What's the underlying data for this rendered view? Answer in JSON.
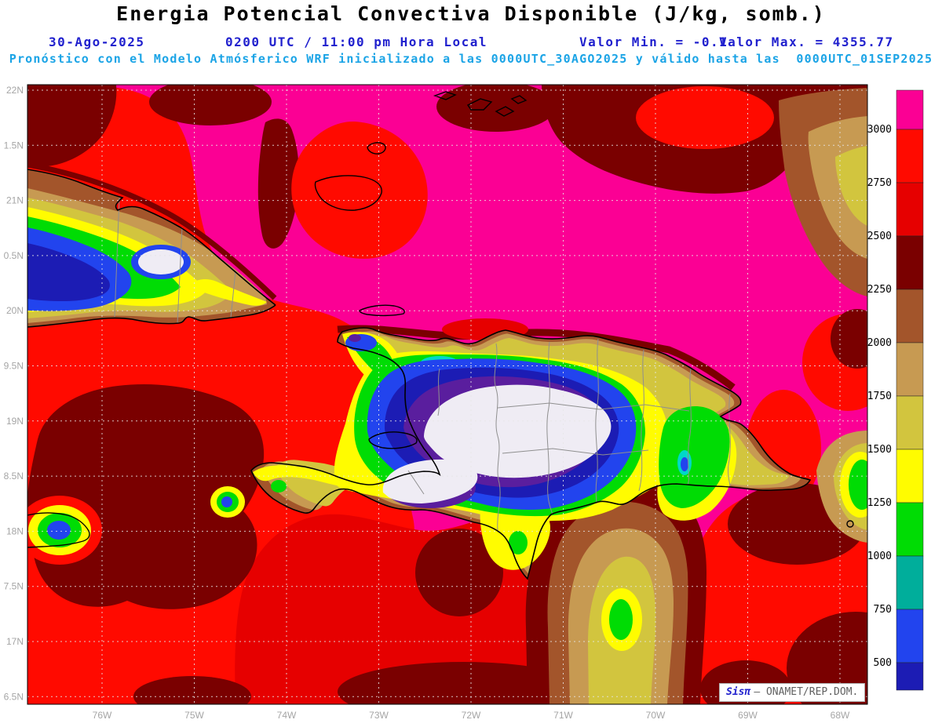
{
  "header": {
    "title": "Energia Potencial Convectiva Disponible (J/kg, somb.)",
    "date": "30-Ago-2025",
    "time": "0200 UTC / 11:00 pm Hora Local",
    "min_label": "Valor Min. = -0.1",
    "max_label": "Valor Max. = 4355.77",
    "forecast_line": "Pronóstico con el Modelo Atmósferico WRF inicializado a las 0000UTC_30AGO2025 y válido hasta las  0000UTC_01SEP2025"
  },
  "colors": {
    "title_black": "#000000",
    "header_blue": "#2121CE",
    "forecast_cyan": "#1BA4E6",
    "axis_gray": "#A5A5A5",
    "grid": "#E6E6E6",
    "coast": "#000000",
    "border_gray": "#8F8F8F",
    "frame": "#000000",
    "watermark_blue": "#2121CE",
    "watermark_gray": "#606060"
  },
  "palette": {
    "magenta": "#FB0094",
    "red": "#FF0A00",
    "red2": "#E60000",
    "maroon": "#7A0000",
    "brown": "#A3552B",
    "tan": "#C79A52",
    "khaki": "#D2C53E",
    "yellow": "#FFFC00",
    "green": "#00DC04",
    "cyan": "#00D8C8",
    "teal": "#00AE9B",
    "blue": "#2244EE",
    "navy": "#1C1CB4",
    "purple": "#5A1E9E",
    "white_low": "#EFECF4"
  },
  "map": {
    "x_ticks": [
      "76W",
      "75W",
      "74W",
      "73W",
      "72W",
      "71W",
      "70W",
      "69W",
      "68W"
    ],
    "y_ticks": [
      "22N",
      "1.5N",
      "21N",
      "0.5N",
      "20N",
      "9.5N",
      "19N",
      "8.5N",
      "18N",
      "7.5N",
      "17N",
      "6.5N"
    ]
  },
  "colorbar": {
    "labels": [
      "3000",
      "2750",
      "2500",
      "2250",
      "2000",
      "1750",
      "1500",
      "1250",
      "1000",
      "750",
      "500"
    ],
    "segments": [
      {
        "range": "> 3000",
        "color": "#FB0094"
      },
      {
        "range": "2750-3000",
        "color": "#FF0A00"
      },
      {
        "range": "2500-2750",
        "color": "#E60000"
      },
      {
        "range": "2250-2500",
        "color": "#7A0000"
      },
      {
        "range": "2000-2250",
        "color": "#A3552B"
      },
      {
        "range": "1750-2000",
        "color": "#C79A52"
      },
      {
        "range": "1500-1750",
        "color": "#D2C53E"
      },
      {
        "range": "1250-1500",
        "color": "#FFFC00"
      },
      {
        "range": "1000-1250",
        "color": "#00DC04"
      },
      {
        "range": "750-1000",
        "color": "#00AE9B"
      },
      {
        "range": "500-750",
        "color": "#2244EE"
      },
      {
        "range": "< 500",
        "color": "#1C1CB4"
      }
    ]
  },
  "watermark": {
    "brand": "Sisπ",
    "org": "— ONAMET/REP.DOM."
  },
  "chart_data": {
    "type": "heatmap",
    "title": "Energia Potencial Convectiva Disponible (J/kg, somb.)",
    "units": "J/kg",
    "value_min": -0.1,
    "value_max": 4355.77,
    "model": "WRF",
    "run_date": "30-Ago-2025",
    "run_time": "0200 UTC / 11:00 pm Hora Local",
    "init": "0000UTC_30AGO2025",
    "valid_until": "0000UTC_01SEP2025",
    "x_ticks": [
      "76W",
      "75W",
      "74W",
      "73W",
      "72W",
      "71W",
      "70W",
      "69W",
      "68W"
    ],
    "y_ticks": [
      "22N",
      "1.5N",
      "21N",
      "0.5N",
      "20N",
      "9.5N",
      "19N",
      "8.5N",
      "18N",
      "7.5N",
      "17N",
      "6.5N"
    ],
    "colorbar_levels": [
      500,
      750,
      1000,
      1250,
      1500,
      1750,
      2000,
      2250,
      2500,
      2750,
      3000
    ],
    "legend_position": "right",
    "grid": true
  }
}
